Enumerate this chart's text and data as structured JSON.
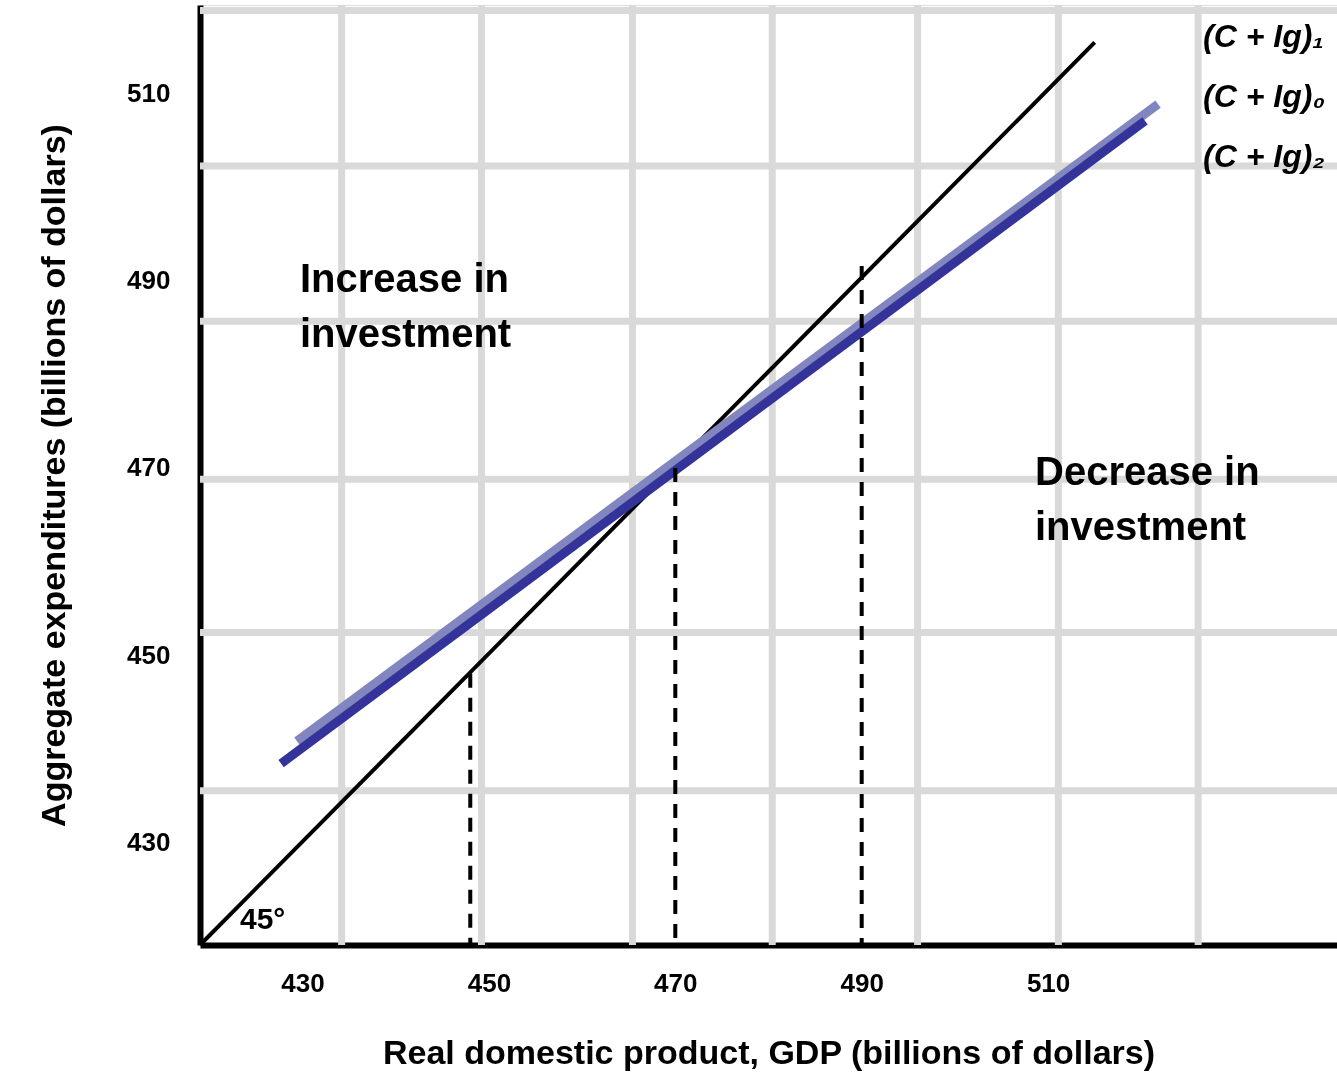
{
  "chart_data": {
    "type": "line",
    "xlabel": "Real domestic product, GDP (billions of dollars)",
    "ylabel": "Aggregate expenditures (billions of dollars)",
    "xlim": [
      419,
      541
    ],
    "ylim": [
      419,
      519.5
    ],
    "xticks": [
      430,
      {
        "value": 434.2,
        "label": null
      },
      {
        "value": 449.2,
        "label": null
      },
      450,
      {
        "value": 465.4,
        "label": null
      },
      470,
      {
        "value": 480.4,
        "label": null
      },
      490,
      {
        "value": 496,
        "label": null
      },
      510,
      {
        "value": 511.1,
        "label": null
      },
      {
        "value": 526.1,
        "label": null
      }
    ],
    "yticks": [
      430,
      {
        "value": 435.5,
        "label": null
      },
      450,
      {
        "value": 452.4,
        "label": null
      },
      {
        "value": 468.8,
        "label": null
      },
      470,
      {
        "value": 485.7,
        "label": null
      },
      490,
      {
        "value": 502.3,
        "label": null
      },
      510,
      {
        "value": 518.9,
        "label": null
      }
    ],
    "grid": true,
    "series": [
      {
        "name": "(C + Ig)₁",
        "color": "#000000",
        "x": [
          419,
          515
        ],
        "values": [
          419,
          515.5
        ]
      },
      {
        "name": "(C + Ig)₀",
        "color": "#8186c0",
        "x": [
          429.4,
          521.8
        ],
        "values": [
          440.8,
          508.9
        ]
      },
      {
        "name": "(C + Ig)₂",
        "color": "#333399",
        "x": [
          427.7,
          520.4
        ],
        "values": [
          438.4,
          507.1
        ]
      },
      {
        "color": "#000000",
        "line_style": "dashed",
        "x": [
          448,
          448
        ],
        "values": [
          419,
          448
        ]
      },
      {
        "color": "#000000",
        "line_style": "dashed",
        "x": [
          470,
          470
        ],
        "values": [
          419,
          470
        ]
      },
      {
        "color": "#000000",
        "line_style": "dashed",
        "x": [
          490,
          490
        ],
        "values": [
          419,
          491.6
        ]
      }
    ],
    "annotations": [
      "Increase in\ninvestment",
      "Decrease in\ninvestment",
      "45°"
    ]
  }
}
